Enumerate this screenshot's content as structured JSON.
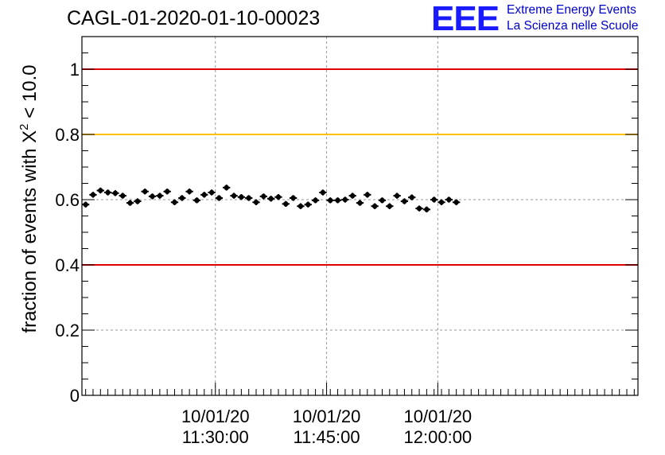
{
  "header": {
    "run_title": "CAGL-01-2020-01-10-00023",
    "logo_mark": "EEE",
    "logo_line1": "Extreme Energy Events",
    "logo_line2": "La Scienza nelle Scuole"
  },
  "chart_data": {
    "type": "scatter",
    "title": "CAGL-01-2020-01-10-00023",
    "xlabel": "",
    "ylabel_parts": [
      "fraction of events with ",
      "X",
      "2",
      " < 10.0"
    ],
    "ylim": [
      0,
      1.1
    ],
    "xlim_minutes": [
      1.5,
      76.5
    ],
    "x_ticks": [
      {
        "minute": 19.5,
        "date": "10/01/20",
        "time": "11:30:00"
      },
      {
        "minute": 34.5,
        "date": "10/01/20",
        "time": "11:45:00"
      },
      {
        "minute": 49.5,
        "date": "10/01/20",
        "time": "12:00:00"
      }
    ],
    "y_ticks": [
      "0",
      "0.2",
      "0.4",
      "0.6",
      "0.8",
      "1"
    ],
    "y_tick_values": [
      0,
      0.2,
      0.4,
      0.6,
      0.8,
      1.0
    ],
    "grid": true,
    "reference_lines": [
      {
        "y": 1.0,
        "color": "#e00000"
      },
      {
        "y": 0.8,
        "color": "#ffc000"
      },
      {
        "y": 0.4,
        "color": "#e00000"
      }
    ],
    "series": [
      {
        "color": "#000000",
        "x_start_minute": 2,
        "x_step_minutes": 1,
        "y": [
          0.585,
          0.615,
          0.628,
          0.622,
          0.62,
          0.612,
          0.59,
          0.595,
          0.625,
          0.61,
          0.612,
          0.625,
          0.592,
          0.605,
          0.625,
          0.598,
          0.615,
          0.622,
          0.605,
          0.637,
          0.612,
          0.608,
          0.605,
          0.592,
          0.61,
          0.603,
          0.608,
          0.587,
          0.605,
          0.58,
          0.585,
          0.598,
          0.622,
          0.598,
          0.598,
          0.6,
          0.612,
          0.59,
          0.615,
          0.58,
          0.598,
          0.58,
          0.612,
          0.595,
          0.607,
          0.573,
          0.57,
          0.6,
          0.592,
          0.6,
          0.592
        ],
        "y_err": 0.009,
        "x_err_minutes": 0.5
      }
    ]
  }
}
